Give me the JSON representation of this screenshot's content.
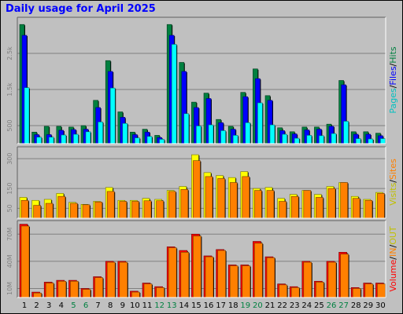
{
  "chart_data": {
    "type": "bar",
    "title": "Daily usage for April 2025",
    "categories": [
      "1",
      "2",
      "3",
      "4",
      "5",
      "6",
      "7",
      "8",
      "9",
      "10",
      "11",
      "12",
      "13",
      "14",
      "15",
      "16",
      "17",
      "18",
      "19",
      "20",
      "21",
      "22",
      "23",
      "24",
      "25",
      "26",
      "27",
      "28",
      "29",
      "30"
    ],
    "weekend_days": [
      "5",
      "6",
      "12",
      "13",
      "19",
      "20",
      "26",
      "27"
    ],
    "panels": [
      {
        "name": "hits",
        "yticks": [
          "500",
          "1.5k",
          "2.5k"
        ],
        "series": [
          {
            "name": "Hits",
            "color": "#008040",
            "values": [
              3300,
              320,
              480,
              480,
              460,
              500,
              1200,
              2300,
              880,
              320,
              400,
              230,
              3300,
              2250,
              1150,
              1400,
              670,
              480,
              1420,
              2070,
              1330,
              440,
              330,
              460,
              460,
              540,
              1750,
              330,
              330,
              290
            ]
          },
          {
            "name": "Files",
            "color": "#0000ff",
            "values": [
              3000,
              250,
              250,
              370,
              390,
              400,
              1000,
              2000,
              730,
              250,
              320,
              170,
              3000,
              2000,
              1000,
              1250,
              580,
              400,
              1300,
              1800,
              1200,
              360,
              270,
              380,
              400,
              480,
              1630,
              260,
              260,
              220
            ]
          },
          {
            "name": "Pages",
            "color": "#00ffff",
            "values": [
              1550,
              180,
              180,
              240,
              260,
              330,
              600,
              1540,
              560,
              160,
              200,
              120,
              2750,
              830,
              490,
              520,
              360,
              230,
              580,
              1130,
              520,
              260,
              150,
              230,
              220,
              280,
              620,
              140,
              130,
              140
            ]
          }
        ]
      },
      {
        "name": "visits",
        "yticks": [
          "50",
          "150",
          "300"
        ],
        "series": [
          {
            "name": "Visits",
            "color": "#ffff00",
            "values": [
              105,
              90,
              95,
              125,
              80,
              70,
              85,
              155,
              90,
              90,
              100,
              95,
              140,
              160,
              320,
              230,
              215,
              205,
              235,
              150,
              155,
              100,
              120,
              140,
              120,
              160,
              180,
              110,
              95,
              130
            ]
          },
          {
            "name": "Sites",
            "color": "#ff8000",
            "values": [
              90,
              65,
              75,
              110,
              75,
              68,
              82,
              135,
              85,
              85,
              88,
              88,
              135,
              145,
              290,
              210,
              200,
              180,
              210,
              140,
              140,
              85,
              110,
              140,
              105,
              150,
              180,
              100,
              90,
              125
            ]
          }
        ]
      },
      {
        "name": "volume",
        "yticks": [
          "10M",
          "40M",
          "70M"
        ],
        "series": [
          {
            "name": "Volume",
            "color": "#ff0000",
            "values": [
              81,
              6,
              17,
              19,
              19,
              10,
              23,
              40,
              40,
              7,
              16,
              12,
              56,
              52,
              70,
              46,
              53,
              36,
              36,
              62,
              45,
              15,
              12,
              40,
              18,
              40,
              50,
              11,
              16,
              16
            ]
          },
          {
            "name": "IN",
            "color": "#ff8000",
            "values": [
              79,
              5,
              16,
              18,
              18,
              9,
              22,
              39,
              39,
              6,
              15,
              11,
              55,
              50,
              68,
              45,
              52,
              35,
              35,
              60,
              44,
              14,
              11,
              39,
              17,
              39,
              48,
              10,
              15,
              15
            ]
          }
        ]
      }
    ],
    "legend_right": [
      {
        "panel": "hits",
        "items": [
          {
            "text": "Pages",
            "color": "#00c0c0"
          },
          {
            "text": "/",
            "color": "#000000"
          },
          {
            "text": "Files",
            "color": "#0000ff"
          },
          {
            "text": "/",
            "color": "#000000"
          },
          {
            "text": "Hits",
            "color": "#008040"
          }
        ]
      },
      {
        "panel": "visits",
        "items": [
          {
            "text": "Visits",
            "color": "#c0c000"
          },
          {
            "text": "/",
            "color": "#000000"
          },
          {
            "text": "Sites",
            "color": "#ff8000"
          }
        ]
      },
      {
        "panel": "volume",
        "items": [
          {
            "text": "Volume",
            "color": "#ff0000"
          },
          {
            "text": "/",
            "color": "#000000"
          },
          {
            "text": "IN",
            "color": "#ff8000"
          },
          {
            "text": "/",
            "color": "#000000"
          },
          {
            "text": "OUT",
            "color": "#c0c000"
          }
        ]
      }
    ],
    "colors": {
      "background": "#c0c0c0",
      "weekday_label": "#000000",
      "weekend_label": "#008040",
      "title": "#0000ff"
    }
  }
}
